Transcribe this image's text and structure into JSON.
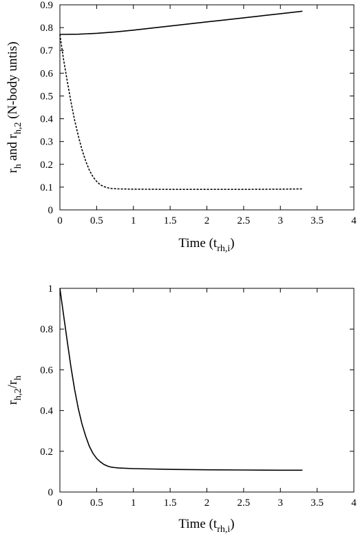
{
  "chart_data": [
    {
      "type": "line",
      "xlabel": {
        "main": "Time (t",
        "sub": "rh,i",
        "end": ")"
      },
      "ylabel": {
        "p1": "r",
        "s1": "h",
        "p2": " and r",
        "s2": "h,2",
        "p3": " (N-body untis)"
      },
      "xlim": [
        0,
        4
      ],
      "ylim": [
        0,
        0.9
      ],
      "xticks": [
        "0",
        "0.5",
        "1",
        "1.5",
        "2",
        "2.5",
        "3",
        "3.5",
        "4"
      ],
      "xtick_values": [
        0,
        0.5,
        1,
        1.5,
        2,
        2.5,
        3,
        3.5,
        4
      ],
      "yticks": [
        "0",
        "0.1",
        "0.2",
        "0.3",
        "0.4",
        "0.5",
        "0.6",
        "0.7",
        "0.8",
        "0.9"
      ],
      "ytick_values": [
        0,
        0.1,
        0.2,
        0.3,
        0.4,
        0.5,
        0.6,
        0.7,
        0.8,
        0.9
      ],
      "grid": false,
      "series": [
        {
          "style": "solid",
          "x": [
            0,
            0.25,
            0.5,
            0.75,
            1.0,
            1.25,
            1.5,
            1.75,
            2.0,
            2.25,
            2.5,
            2.75,
            3.0,
            3.3
          ],
          "y": [
            0.77,
            0.771,
            0.775,
            0.781,
            0.789,
            0.798,
            0.807,
            0.816,
            0.825,
            0.834,
            0.843,
            0.852,
            0.861,
            0.872
          ]
        },
        {
          "style": "dashed",
          "x": [
            0,
            0.05,
            0.1,
            0.15,
            0.2,
            0.25,
            0.3,
            0.35,
            0.4,
            0.45,
            0.5,
            0.55,
            0.6,
            0.65,
            0.7,
            0.75,
            0.8,
            1.0,
            1.5,
            2.0,
            2.5,
            3.0,
            3.3
          ],
          "y": [
            0.77,
            0.66,
            0.565,
            0.475,
            0.395,
            0.325,
            0.265,
            0.215,
            0.175,
            0.145,
            0.125,
            0.11,
            0.102,
            0.097,
            0.094,
            0.093,
            0.092,
            0.091,
            0.09,
            0.09,
            0.09,
            0.091,
            0.092
          ]
        }
      ]
    },
    {
      "type": "line",
      "xlabel": {
        "main": "Time (t",
        "sub": "rh,i",
        "end": ")"
      },
      "ylabel": {
        "p1": "r",
        "s1": "h,2",
        "p2": "/r",
        "s2": "h",
        "p3": ""
      },
      "xlim": [
        0,
        4
      ],
      "ylim": [
        0,
        1
      ],
      "xticks": [
        "0",
        "0.5",
        "1",
        "1.5",
        "2",
        "2.5",
        "3",
        "3.5",
        "4"
      ],
      "xtick_values": [
        0,
        0.5,
        1,
        1.5,
        2,
        2.5,
        3,
        3.5,
        4
      ],
      "yticks": [
        "0",
        "0.2",
        "0.4",
        "0.6",
        "0.8",
        "1"
      ],
      "ytick_values": [
        0,
        0.2,
        0.4,
        0.6,
        0.8,
        1
      ],
      "grid": false,
      "series": [
        {
          "style": "solid",
          "x": [
            0,
            0.05,
            0.1,
            0.15,
            0.2,
            0.25,
            0.3,
            0.35,
            0.4,
            0.45,
            0.5,
            0.55,
            0.6,
            0.65,
            0.7,
            0.75,
            0.8,
            1.0,
            1.5,
            2.0,
            2.5,
            3.0,
            3.3
          ],
          "y": [
            1.0,
            0.87,
            0.74,
            0.615,
            0.505,
            0.41,
            0.335,
            0.275,
            0.225,
            0.19,
            0.165,
            0.148,
            0.135,
            0.127,
            0.122,
            0.12,
            0.118,
            0.115,
            0.111,
            0.109,
            0.108,
            0.107,
            0.107
          ]
        }
      ]
    }
  ]
}
